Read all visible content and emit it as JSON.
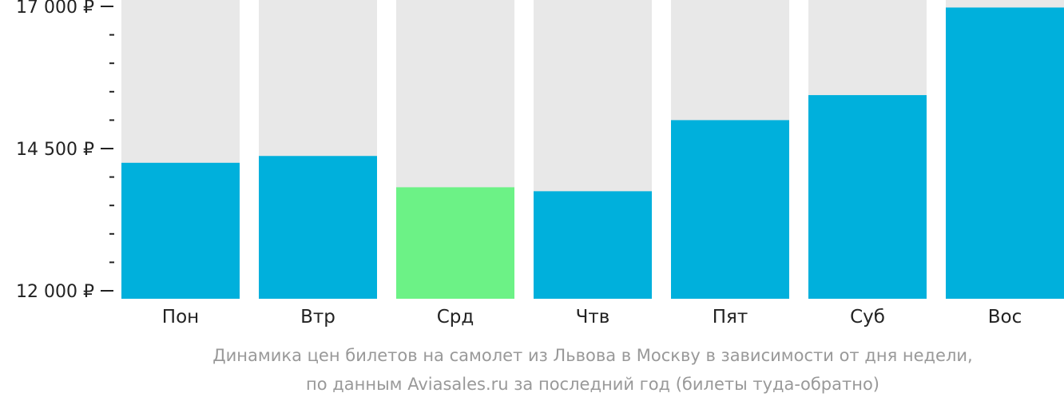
{
  "chart_data": {
    "type": "bar",
    "categories": [
      "Пон",
      "Втр",
      "Срд",
      "Чтв",
      "Пят",
      "Суб",
      "Вос"
    ],
    "values": [
      14250,
      14370,
      13820,
      13750,
      15000,
      15440,
      16980
    ],
    "ylim": [
      12000,
      17000
    ],
    "ytick_values": [
      12000,
      14500,
      17000
    ],
    "ytick_labels": [
      "12 000 ₽",
      "14 500 ₽",
      "17 000 ₽"
    ],
    "minor_ticks_per_interval": 4,
    "caption_lines": [
      "Динамика цен билетов на самолет из Львова в Москву в зависимости от дня недели,",
      "по данным Aviasales.ru за последний год (билеты туда-обратно)"
    ],
    "highlight_index": 2,
    "colors": {
      "bar": "#00b0dc",
      "highlight": "#6cf286",
      "track": "#e8e8e8",
      "axis": "#222222",
      "caption": "#999999"
    }
  }
}
